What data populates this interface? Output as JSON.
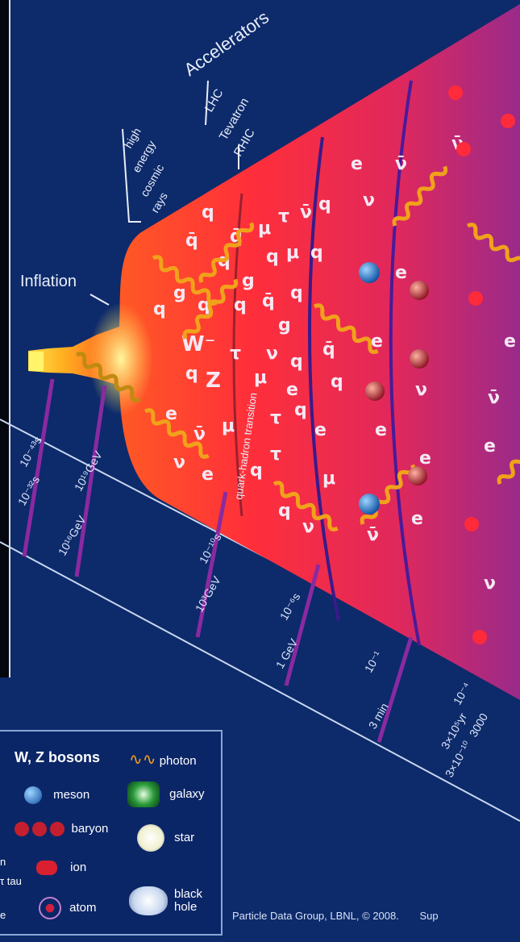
{
  "labels": {
    "accelerators": "Accelerators",
    "acc_items": [
      "LHC",
      "Tevatron",
      "RHIC"
    ],
    "cosmic_rays": [
      "high",
      "energy",
      "cosmic",
      "rays"
    ],
    "inflation": "Inflation",
    "transition": "quark-hadron transition"
  },
  "time_labels": [
    {
      "text": "10⁻⁴³s"
    },
    {
      "text": "10⁻³²s"
    },
    {
      "text": "10¹⁹GeV"
    },
    {
      "text": "10¹⁶GeV"
    },
    {
      "text": "10⁻¹⁰s"
    },
    {
      "text": "10³GeV"
    },
    {
      "text": "10⁻⁶s"
    },
    {
      "text": "1 GeV"
    },
    {
      "text": "10⁻¹"
    },
    {
      "text": "3 min"
    },
    {
      "text": "10⁻⁴"
    },
    {
      "text": "3×10⁵yr"
    },
    {
      "text": "3000"
    },
    {
      "text": "3×10⁻¹⁰"
    }
  ],
  "legend": {
    "items": [
      {
        "label": "W, Z bosons",
        "icon": "w-z-bosons-icon"
      },
      {
        "label": "photon",
        "icon": "photon-icon"
      },
      {
        "label": "meson",
        "icon": "meson-icon"
      },
      {
        "label": "galaxy",
        "icon": "galaxy-icon"
      },
      {
        "label": "baryon",
        "icon": "baryon-icon"
      },
      {
        "label": "star",
        "icon": "star-icon"
      },
      {
        "label": "ion",
        "icon": "ion-icon"
      },
      {
        "label": "atom",
        "icon": "atom-icon"
      },
      {
        "label": "black hole",
        "icon": "black-hole-icon"
      }
    ],
    "partial_left": [
      "n",
      "τ tau",
      "e"
    ]
  },
  "credit": "Particle Data Group, LBNL, © 2008.",
  "credit_partial": "Sup",
  "particles": {
    "quark": "q",
    "antiquark": "q̄",
    "electron": "e",
    "mu": "μ",
    "tau": "τ",
    "neutrino": "ν",
    "antineutrino": "ν̄",
    "w_boson": "W⁻",
    "z_boson": "Z",
    "gluon": "g"
  },
  "colors": {
    "background": "#0d2a6b",
    "plasma_inner": "#ffe14a",
    "plasma_mid": "#ff3a2a",
    "plasma_outer": "#b0227a",
    "photon": "#f0a21a",
    "epoch_line": "#7a1f95",
    "meson": "#1f7ad0",
    "baryon": "#c41f2f"
  }
}
